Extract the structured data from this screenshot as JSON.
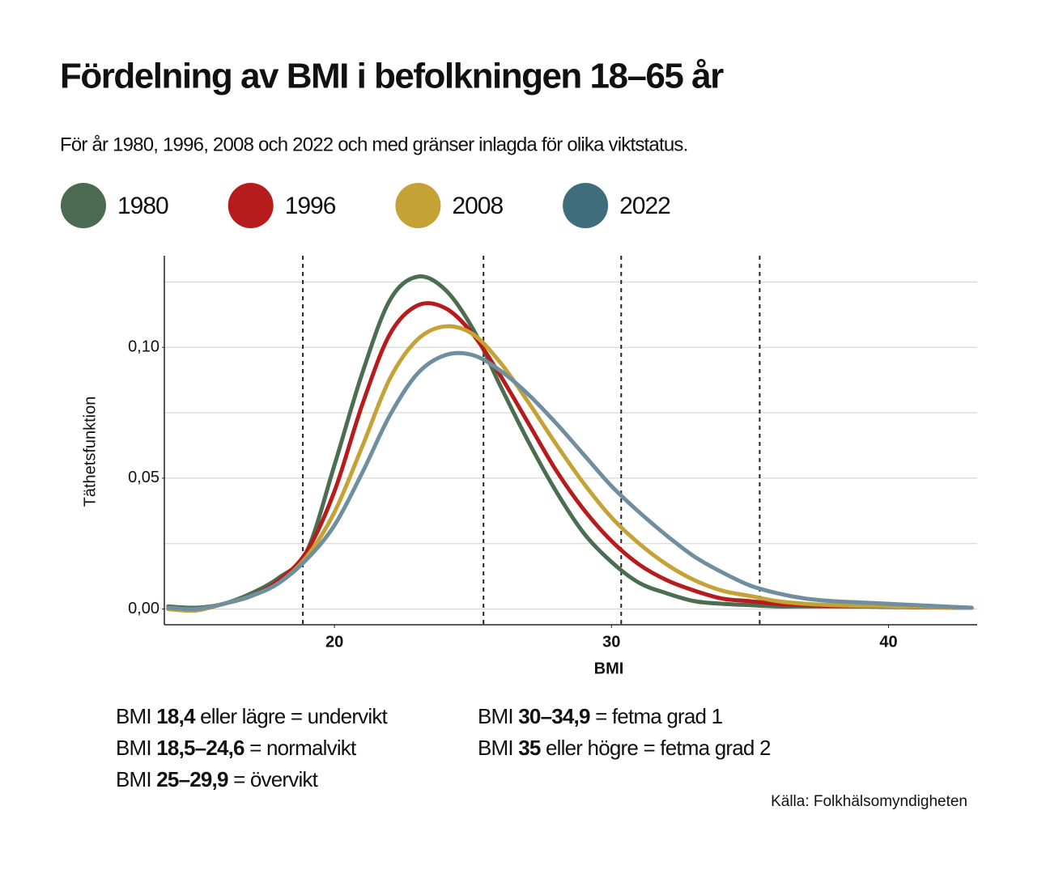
{
  "chart_data": {
    "type": "line",
    "title": "Fördelning av BMI i befolkningen 18–65 år",
    "subtitle": "För år 1980, 1996, 2008 och 2022 och med gränser inlagda för olika viktstatus.",
    "x_label": "BMI",
    "y_label": "Täthetsfunktion",
    "x": [
      14,
      15,
      16,
      17,
      18,
      19,
      20,
      21,
      22,
      23,
      24,
      25,
      26,
      27,
      28,
      29,
      30,
      31,
      32,
      33,
      34,
      35,
      36,
      37,
      38,
      39,
      40,
      41,
      42,
      43
    ],
    "series": [
      {
        "name": "1980",
        "color": "#4a6e4f",
        "values": [
          0.001,
          0.0005,
          0.002,
          0.006,
          0.012,
          0.022,
          0.055,
          0.09,
          0.118,
          0.127,
          0.122,
          0.107,
          0.085,
          0.064,
          0.045,
          0.029,
          0.018,
          0.01,
          0.006,
          0.003,
          0.002,
          0.0015,
          0.001,
          0.001,
          0.001,
          0.001,
          0.0008,
          0.0007,
          0.0006,
          0.0005
        ]
      },
      {
        "name": "1996",
        "color": "#b71c1c",
        "values": [
          0,
          -0.0005,
          0.002,
          0.005,
          0.011,
          0.022,
          0.045,
          0.078,
          0.105,
          0.116,
          0.115,
          0.105,
          0.089,
          0.071,
          0.053,
          0.038,
          0.026,
          0.017,
          0.011,
          0.007,
          0.004,
          0.003,
          0.002,
          0.0015,
          0.0012,
          0.001,
          0.0009,
          0.0007,
          0.0006,
          0.0005
        ]
      },
      {
        "name": "2008",
        "color": "#c5a236",
        "values": [
          0,
          -0.0005,
          0.002,
          0.005,
          0.01,
          0.02,
          0.037,
          0.062,
          0.088,
          0.103,
          0.108,
          0.105,
          0.094,
          0.079,
          0.063,
          0.048,
          0.035,
          0.025,
          0.017,
          0.011,
          0.007,
          0.005,
          0.003,
          0.002,
          0.0015,
          0.0012,
          0.001,
          0.0008,
          0.0007,
          0.0005
        ]
      },
      {
        "name": "2022",
        "color": "#6f8f9f",
        "values": [
          0.0005,
          0,
          0.002,
          0.005,
          0.01,
          0.019,
          0.032,
          0.052,
          0.074,
          0.09,
          0.097,
          0.097,
          0.091,
          0.082,
          0.071,
          0.059,
          0.047,
          0.037,
          0.028,
          0.02,
          0.014,
          0.009,
          0.006,
          0.004,
          0.003,
          0.0025,
          0.002,
          0.0015,
          0.001,
          0.0005
        ]
      }
    ],
    "legend_colors": [
      "#4a6b52",
      "#b71c1c",
      "#c5a236",
      "#3f6d7c"
    ],
    "xlim": [
      13.86,
      43.2
    ],
    "ylim": [
      -0.006,
      0.135
    ],
    "xticks": [
      20,
      30,
      40
    ],
    "yticks": [
      {
        "value": 0,
        "label": "0,00"
      },
      {
        "value": 0.05,
        "label": "0,05"
      },
      {
        "value": 0.1,
        "label": "0,10"
      }
    ],
    "ygrid": [
      0,
      0.025,
      0.05,
      0.075,
      0.1,
      0.125
    ],
    "reference_lines": [
      18.86,
      25.38,
      30.35,
      35.35
    ],
    "notes": [
      [
        "BMI ",
        "18,4",
        " eller lägre = undervikt"
      ],
      [
        "BMI ",
        "18,5–24,6",
        " = normalvikt"
      ],
      [
        "BMI ",
        "25–29,9",
        " = övervikt"
      ],
      [
        "BMI ",
        "30–34,9",
        " = fetma grad 1"
      ],
      [
        "BMI ",
        "35",
        " eller högre = fetma grad 2"
      ]
    ],
    "source": "Källa: Folkhälsomyndigheten"
  }
}
